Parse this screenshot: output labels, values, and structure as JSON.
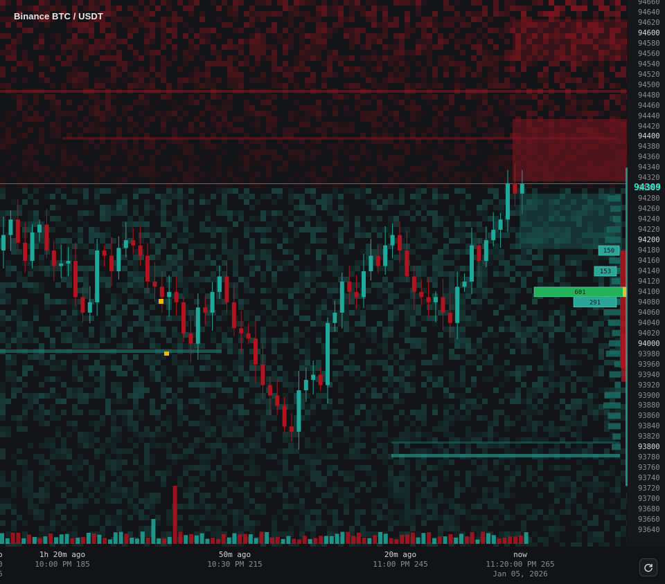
{
  "header": {
    "title": "Binance BTC / USDT"
  },
  "price_axis": {
    "labels": [
      "94660",
      "94640",
      "94620",
      "94600",
      "94580",
      "94560",
      "94540",
      "94520",
      "94500",
      "94480",
      "94460",
      "94440",
      "94420",
      "94400",
      "94380",
      "94360",
      "94340",
      "94320",
      "94300",
      "94280",
      "94260",
      "94240",
      "94220",
      "94200",
      "94180",
      "94160",
      "94140",
      "94120",
      "94100",
      "94080",
      "94060",
      "94040",
      "94020",
      "94000",
      "93980",
      "93960",
      "93940",
      "93920",
      "93900",
      "93880",
      "93860",
      "93840",
      "93820",
      "93800",
      "93780",
      "93760",
      "93740",
      "93720",
      "93700",
      "93680",
      "93660",
      "93640"
    ],
    "major": [
      "94600",
      "94400",
      "94200",
      "94000",
      "93800"
    ],
    "current_price": "94309"
  },
  "time_axis": [
    {
      "line1": "o",
      "line2": "0",
      "line3": "6"
    },
    {
      "line1": "1h 20m ago",
      "line2": "10:00 PM 185",
      "line3": ""
    },
    {
      "line1": "50m ago",
      "line2": "10:30 PM 215",
      "line3": ""
    },
    {
      "line1": "20m ago",
      "line2": "11:00 PM 245",
      "line3": ""
    },
    {
      "line1": "now",
      "line2": "11:20:00 PM 265",
      "line3": "Jan 05, 2026"
    }
  ],
  "order_book_labels": [
    "150",
    "153",
    "601",
    "291"
  ],
  "colors": {
    "bull": "#1fa99a",
    "bear": "#b3131f",
    "price_line": "#35e3c8",
    "highlight": "#22b35a",
    "marker": "#f4b400"
  },
  "icons": {
    "refresh": "refresh-icon"
  }
}
